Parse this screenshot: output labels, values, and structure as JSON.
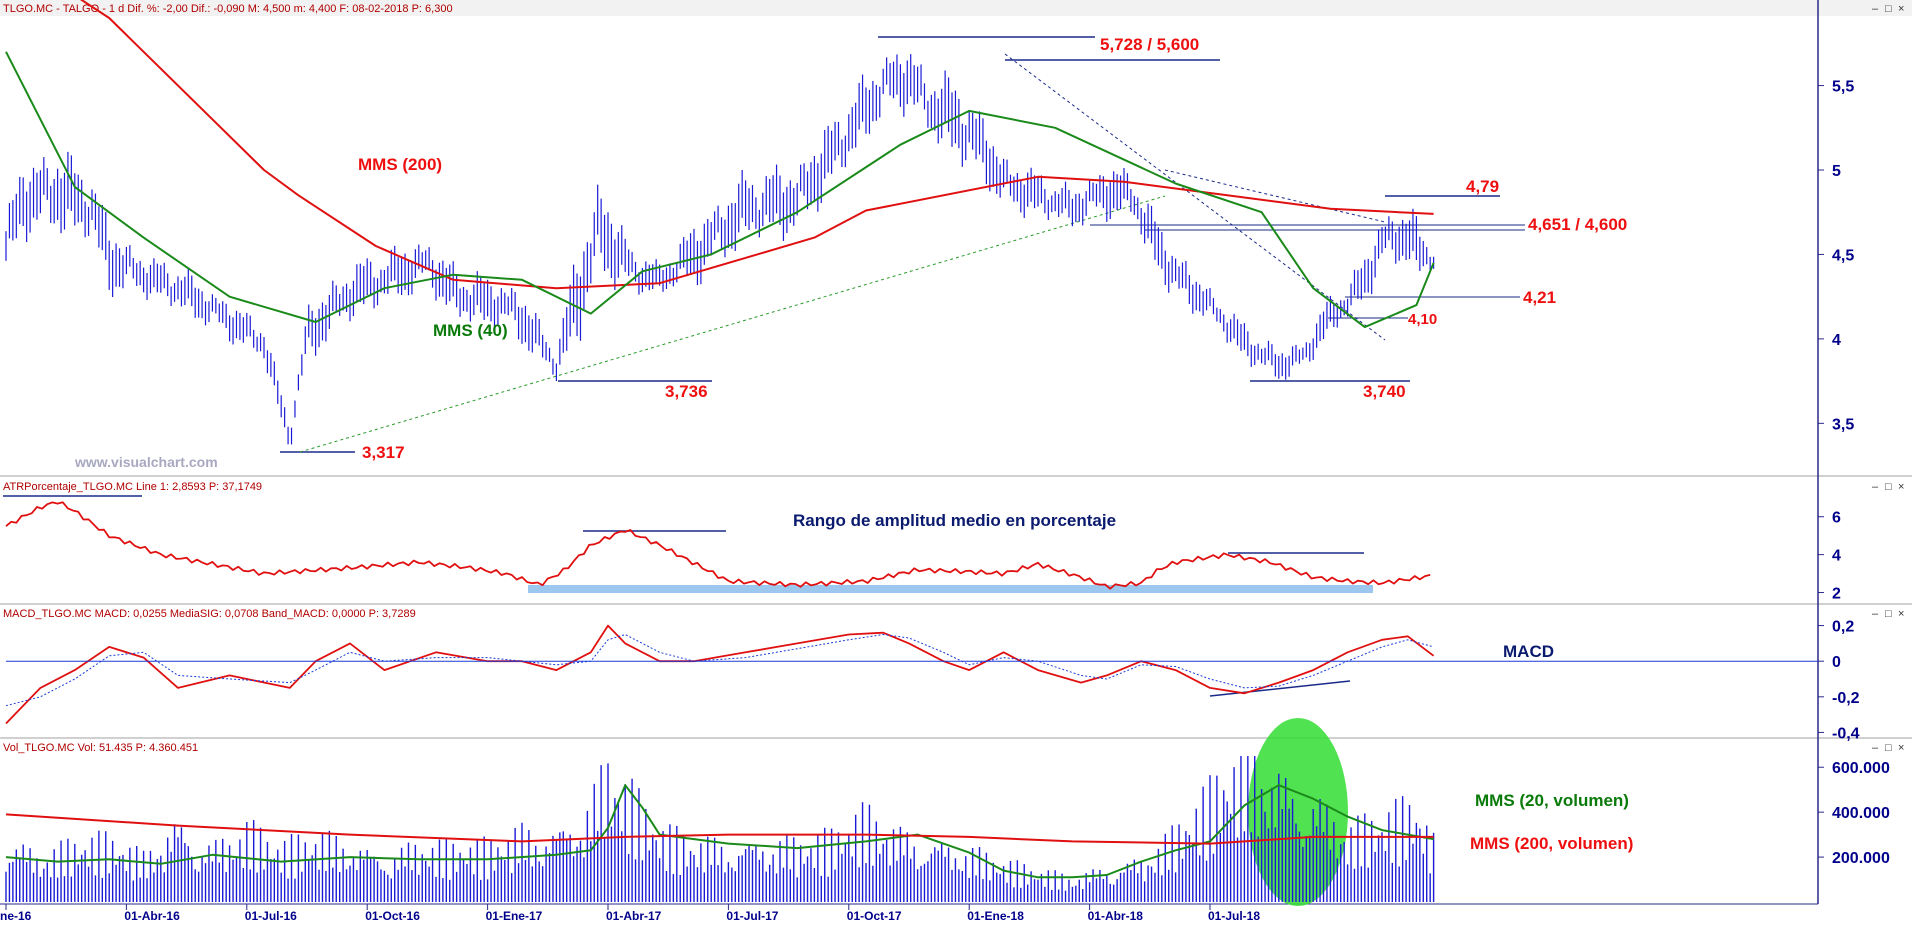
{
  "chart_data": [
    {
      "type": "line",
      "panel": "price",
      "header": "TLGO.MC - TALGO - 1 d  Dif. %: -2,00  Dif.: -0,090  M: 4,500  m: 4,400  F: 08-02-2018  P: 6,300",
      "y_ticks": [
        "5,5",
        "5",
        "4,5",
        "4",
        "3,5"
      ],
      "y_tick_values": [
        5.5,
        5.0,
        4.5,
        4.0,
        3.5
      ],
      "ylim": [
        3.2,
        5.9
      ],
      "watermark": "www.visualchart.com",
      "series": [
        {
          "name": "MMS (200)",
          "color": "#e01010",
          "x": [
            0,
            60,
            150,
            170,
            215,
            260,
            320,
            380,
            470,
            500,
            600,
            650,
            710,
            770,
            810,
            830
          ],
          "y": [
            6.3,
            5.9,
            5.0,
            4.85,
            4.55,
            4.35,
            4.3,
            4.33,
            4.6,
            4.76,
            4.96,
            4.93,
            4.85,
            4.77,
            4.75,
            4.74
          ]
        },
        {
          "name": "MMS (40)",
          "color": "#1a8a1a",
          "x": [
            0,
            40,
            80,
            130,
            180,
            220,
            260,
            300,
            340,
            370,
            410,
            460,
            520,
            560,
            610,
            680,
            730,
            760,
            790,
            820,
            830
          ],
          "y": [
            5.7,
            4.9,
            4.6,
            4.25,
            4.1,
            4.3,
            4.38,
            4.35,
            4.15,
            4.4,
            4.5,
            4.75,
            5.15,
            5.35,
            5.25,
            4.92,
            4.75,
            4.3,
            4.07,
            4.2,
            4.45
          ]
        }
      ],
      "price_bars": {
        "x": [
          0,
          10,
          30,
          50,
          60,
          80,
          100,
          120,
          150,
          165,
          175,
          200,
          225,
          245,
          260,
          275,
          290,
          300,
          320,
          335,
          345,
          365,
          380,
          400,
          430,
          460,
          490,
          510,
          525,
          535,
          555,
          570,
          580,
          600,
          620,
          640,
          655,
          665,
          680,
          700,
          720,
          740,
          755,
          765,
          780,
          790,
          800,
          815,
          820,
          830
        ],
        "high": [
          4.8,
          5.05,
          5.15,
          5.0,
          4.7,
          4.5,
          4.45,
          4.3,
          4.1,
          3.5,
          4.2,
          4.45,
          4.55,
          4.6,
          4.45,
          4.4,
          4.35,
          4.3,
          3.95,
          4.7,
          4.95,
          4.55,
          4.45,
          4.7,
          5.0,
          5.05,
          5.45,
          5.7,
          5.75,
          5.6,
          5.55,
          5.3,
          5.1,
          5.0,
          4.9,
          5.05,
          5.0,
          4.8,
          4.55,
          4.3,
          4.1,
          3.95,
          4.0,
          4.2,
          4.35,
          4.5,
          4.75,
          4.78,
          4.75,
          4.55
        ],
        "low": [
          4.3,
          4.6,
          4.6,
          4.55,
          4.25,
          4.25,
          4.15,
          4.05,
          3.85,
          3.32,
          3.85,
          4.1,
          4.2,
          4.3,
          4.1,
          4.05,
          4.05,
          3.95,
          3.74,
          4.0,
          4.35,
          4.25,
          4.25,
          4.3,
          4.55,
          4.6,
          5.0,
          5.3,
          5.35,
          5.2,
          5.0,
          4.9,
          4.75,
          4.7,
          4.65,
          4.7,
          4.7,
          4.45,
          4.2,
          4.1,
          3.85,
          3.74,
          3.8,
          3.95,
          4.1,
          4.2,
          4.4,
          4.45,
          4.3,
          4.4
        ]
      },
      "annotations": [
        {
          "text": "MMS (200)",
          "color": "red"
        },
        {
          "text": "MMS (40)",
          "color": "green"
        },
        {
          "text": "5,728 / 5,600",
          "color": "red"
        },
        {
          "text": "4,79",
          "color": "red"
        },
        {
          "text": "4,651 / 4,600",
          "color": "red"
        },
        {
          "text": "4,21",
          "color": "red"
        },
        {
          "text": "4,10",
          "color": "red"
        },
        {
          "text": "3,736",
          "color": "red"
        },
        {
          "text": "3,740",
          "color": "red"
        },
        {
          "text": "3,317",
          "color": "red"
        }
      ]
    },
    {
      "type": "line",
      "panel": "atr",
      "header": "ATRPorcentaje_TLGO.MC  Line 1: 2,8593  P: 37,1749",
      "title": "Rango de amplitud medio en porcentaje",
      "y_ticks": [
        "6",
        "4",
        "2"
      ],
      "y_tick_values": [
        6,
        4,
        2
      ],
      "ylim": [
        1.5,
        7.2
      ],
      "series": [
        {
          "name": "Line 1",
          "color": "#e01010",
          "x": [
            0,
            20,
            30,
            40,
            60,
            90,
            120,
            150,
            200,
            240,
            270,
            290,
            310,
            325,
            340,
            360,
            380,
            420,
            460,
            500,
            530,
            560,
            580,
            600,
            625,
            640,
            660,
            670,
            680,
            695,
            710,
            735,
            760,
            780,
            800,
            830
          ],
          "y": [
            5.5,
            6.5,
            6.8,
            6.3,
            5.0,
            4.0,
            3.5,
            3.0,
            3.3,
            3.6,
            3.3,
            3.0,
            2.4,
            3.2,
            4.5,
            5.3,
            4.5,
            2.6,
            2.4,
            2.6,
            3.2,
            3.1,
            3.0,
            3.5,
            2.8,
            2.3,
            2.5,
            3.2,
            3.6,
            3.8,
            4.0,
            3.6,
            2.8,
            2.6,
            2.5,
            2.9
          ]
        }
      ]
    },
    {
      "type": "line",
      "panel": "macd",
      "header": "MACD_TLGO.MC  MACD: 0,0255  MediaSIG: 0,0708  Band_MACD: 0,0000  P: 3,7289",
      "title": "MACD",
      "y_ticks": [
        "0,2",
        "0",
        "-0,2",
        "-0,4"
      ],
      "y_tick_values": [
        0.2,
        0.0,
        -0.2,
        -0.4
      ],
      "ylim": [
        -0.42,
        0.22
      ],
      "series": [
        {
          "name": "MACD",
          "color": "#e01010",
          "x": [
            0,
            20,
            40,
            60,
            80,
            100,
            130,
            165,
            180,
            200,
            220,
            250,
            280,
            300,
            320,
            340,
            350,
            360,
            380,
            400,
            430,
            460,
            490,
            510,
            525,
            545,
            560,
            580,
            600,
            625,
            640,
            660,
            680,
            700,
            720,
            740,
            760,
            780,
            800,
            815,
            830
          ],
          "y": [
            -0.35,
            -0.15,
            -0.05,
            0.08,
            0.02,
            -0.15,
            -0.08,
            -0.15,
            0.0,
            0.1,
            -0.05,
            0.05,
            0.0,
            0.0,
            -0.05,
            0.05,
            0.2,
            0.1,
            0.0,
            0.0,
            0.05,
            0.1,
            0.15,
            0.16,
            0.1,
            0.0,
            -0.05,
            0.05,
            -0.05,
            -0.12,
            -0.08,
            0.0,
            -0.05,
            -0.15,
            -0.18,
            -0.12,
            -0.05,
            0.05,
            0.12,
            0.14,
            0.03
          ]
        },
        {
          "name": "MediaSIG",
          "color": "#1a3ad8",
          "x": [
            0,
            20,
            40,
            60,
            80,
            100,
            130,
            165,
            180,
            200,
            220,
            250,
            280,
            300,
            320,
            340,
            350,
            360,
            380,
            400,
            430,
            460,
            490,
            510,
            525,
            545,
            560,
            580,
            600,
            625,
            640,
            660,
            680,
            700,
            720,
            740,
            760,
            780,
            800,
            815,
            830
          ],
          "y": [
            -0.25,
            -0.2,
            -0.1,
            0.03,
            0.05,
            -0.08,
            -0.1,
            -0.12,
            -0.05,
            0.05,
            0.0,
            0.02,
            0.02,
            0.0,
            -0.02,
            0.0,
            0.12,
            0.15,
            0.05,
            0.0,
            0.02,
            0.07,
            0.12,
            0.15,
            0.13,
            0.05,
            -0.02,
            0.02,
            0.0,
            -0.08,
            -0.1,
            -0.02,
            -0.03,
            -0.1,
            -0.15,
            -0.14,
            -0.08,
            0.0,
            0.08,
            0.12,
            0.08
          ]
        },
        {
          "name": "Band_MACD",
          "color": "#1a3ad8",
          "x": [
            0,
            830
          ],
          "y": [
            0,
            0
          ]
        }
      ]
    },
    {
      "type": "bar",
      "panel": "volume",
      "header": "Vol_TLGO.MC  Vol: 51.435  P: 4.360.451",
      "y_ticks": [
        "600.000",
        "400.000",
        "200.000"
      ],
      "y_tick_values": [
        600000,
        400000,
        200000
      ],
      "ylim": [
        0,
        650000
      ],
      "x": [
        0,
        20,
        40,
        60,
        80,
        100,
        120,
        140,
        160,
        180,
        200,
        220,
        240,
        260,
        280,
        300,
        320,
        340,
        350,
        360,
        380,
        400,
        420,
        440,
        460,
        480,
        500,
        520,
        540,
        560,
        580,
        600,
        620,
        640,
        660,
        680,
        700,
        720,
        740,
        760,
        780,
        800,
        820,
        830
      ],
      "values": [
        300000,
        200000,
        230000,
        240000,
        190000,
        360000,
        250000,
        300000,
        210000,
        260000,
        260000,
        220000,
        240000,
        210000,
        220000,
        300000,
        330000,
        440000,
        580000,
        460000,
        270000,
        250000,
        260000,
        280000,
        240000,
        250000,
        350000,
        300000,
        280000,
        220000,
        150000,
        120000,
        100000,
        160000,
        190000,
        280000,
        420000,
        600000,
        560000,
        480000,
        300000,
        320000,
        380000,
        250000
      ],
      "series": [
        {
          "name": "MMS (20, volumen)",
          "color": "#1a8a1a",
          "x": [
            0,
            30,
            60,
            90,
            120,
            160,
            200,
            240,
            280,
            320,
            340,
            350,
            360,
            370,
            380,
            420,
            460,
            500,
            530,
            560,
            580,
            600,
            620,
            640,
            660,
            680,
            700,
            720,
            740,
            760,
            780,
            800,
            830
          ],
          "y": [
            200000,
            180000,
            190000,
            170000,
            210000,
            180000,
            200000,
            190000,
            190000,
            210000,
            230000,
            330000,
            520000,
            420000,
            300000,
            260000,
            240000,
            270000,
            300000,
            220000,
            140000,
            110000,
            110000,
            120000,
            180000,
            230000,
            270000,
            430000,
            520000,
            460000,
            380000,
            320000,
            280000
          ]
        },
        {
          "name": "MMS (200, volumen)",
          "color": "#e01010",
          "x": [
            0,
            100,
            200,
            300,
            360,
            420,
            500,
            560,
            620,
            700,
            760,
            830
          ],
          "y": [
            390000,
            340000,
            300000,
            270000,
            290000,
            300000,
            300000,
            290000,
            270000,
            260000,
            290000,
            290000
          ]
        }
      ]
    }
  ],
  "x_axis": {
    "ticks": [
      "ne-16",
      "01-Abr-16",
      "01-Jul-16",
      "01-Oct-16",
      "01-Ene-17",
      "01-Abr-17",
      "01-Jul-17",
      "01-Oct-17",
      "01-Ene-18",
      "01-Abr-18",
      "01-Jul-18"
    ],
    "tick_index": [
      0,
      70,
      140,
      210,
      280,
      350,
      420,
      490,
      560,
      630,
      700
    ],
    "last_bar_index": 830,
    "axis_max_index": 750
  },
  "volume_labels": {
    "mms20": "MMS (20, volumen)",
    "mms200": "MMS (200, volumen)"
  },
  "colors": {
    "price_bar": "#1a1ad6",
    "volume_bar": "#1a1ad6",
    "axis_text": "#00008b",
    "header_text": "#b00000",
    "annotation_red": "#ee1010",
    "annotation_green": "#0a7a0a",
    "atr_band": "#9cc8f0",
    "volume_highlight": "#33dd33"
  }
}
